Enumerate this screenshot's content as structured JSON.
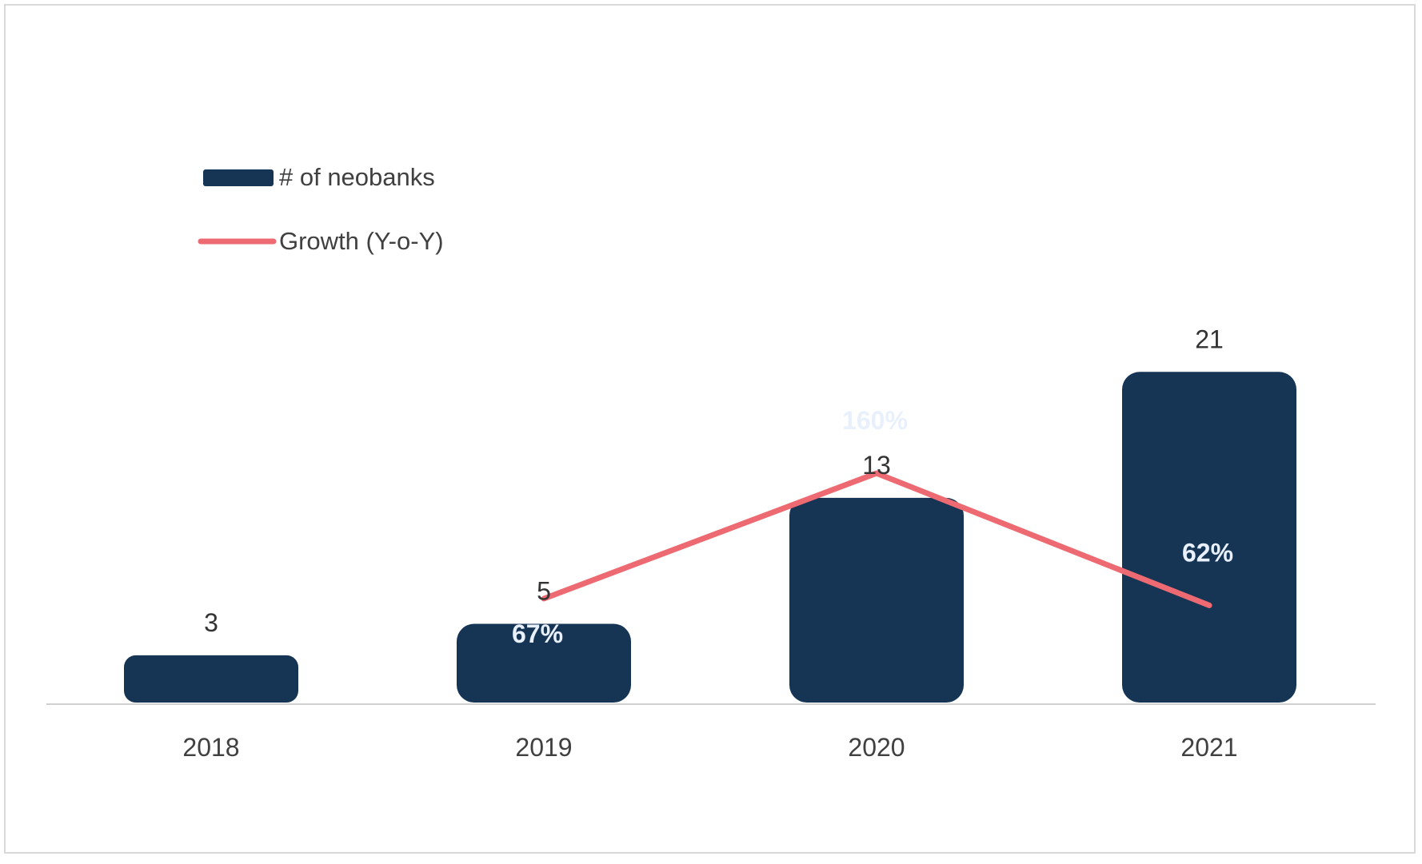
{
  "chart_data": {
    "type": "bar",
    "categories": [
      "2018",
      "2019",
      "2020",
      "2021"
    ],
    "series": [
      {
        "name": "# of neobanks",
        "kind": "bar",
        "values": [
          3,
          5,
          13,
          21
        ],
        "labels": [
          "3",
          "5",
          "13",
          "21"
        ],
        "color": "#163554"
      },
      {
        "name": "Growth (Y-o-Y)",
        "kind": "line",
        "values": [
          null,
          67,
          160,
          62
        ],
        "labels": [
          "",
          "67%",
          "160%",
          "62%"
        ],
        "color": "#ee6a72"
      }
    ],
    "legend": {
      "position": "top-left",
      "items": [
        "# of neobanks",
        "Growth (Y-o-Y)"
      ]
    },
    "grid": false
  }
}
